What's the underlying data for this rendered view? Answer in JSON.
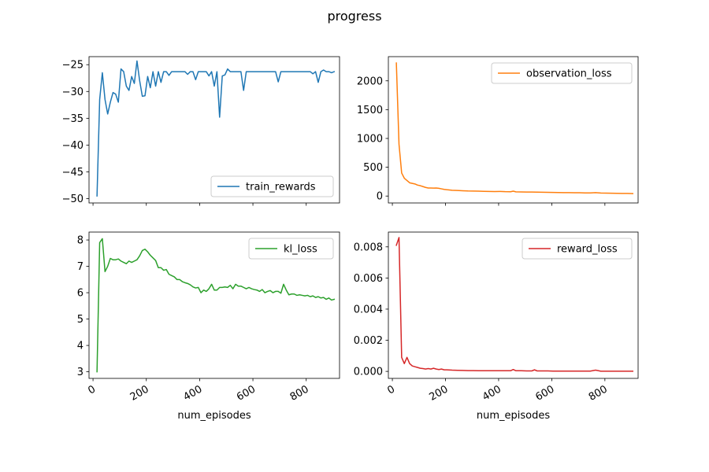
{
  "figure": {
    "title": "progress"
  },
  "chart_data": [
    {
      "type": "line",
      "series": [
        {
          "name": "train_rewards",
          "color": "#1f77b4",
          "x": [
            15,
            25,
            35,
            45,
            55,
            65,
            75,
            85,
            95,
            105,
            115,
            125,
            135,
            145,
            155,
            165,
            175,
            185,
            195,
            205,
            215,
            225,
            235,
            245,
            255,
            265,
            275,
            285,
            295,
            305,
            315,
            325,
            335,
            345,
            355,
            365,
            375,
            385,
            395,
            405,
            415,
            425,
            435,
            445,
            455,
            465,
            475,
            485,
            495,
            505,
            515,
            525,
            535,
            545,
            555,
            565,
            575,
            585,
            595,
            605,
            615,
            625,
            635,
            645,
            655,
            665,
            675,
            685,
            695,
            705,
            715,
            725,
            735,
            745,
            755,
            765,
            775,
            785,
            795,
            805,
            815,
            825,
            835,
            845,
            855,
            865,
            875,
            885,
            895,
            905
          ],
          "values": [
            -49.5,
            -31.5,
            -26.5,
            -31.5,
            -34.2,
            -32.0,
            -30.2,
            -30.5,
            -32.0,
            -25.8,
            -26.3,
            -29.0,
            -29.8,
            -27.2,
            -28.5,
            -24.3,
            -28.0,
            -30.9,
            -30.8,
            -27.2,
            -29.3,
            -26.3,
            -29.0,
            -26.3,
            -28.3,
            -26.3,
            -26.3,
            -27.0,
            -26.3,
            -26.3,
            -26.3,
            -26.3,
            -26.3,
            -26.3,
            -26.8,
            -26.3,
            -26.3,
            -27.8,
            -26.3,
            -26.3,
            -26.3,
            -26.3,
            -27.1,
            -26.3,
            -29.0,
            -26.3,
            -34.8,
            -27.1,
            -26.9,
            -25.8,
            -26.3,
            -26.3,
            -26.3,
            -26.3,
            -26.3,
            -29.8,
            -26.3,
            -26.3,
            -26.3,
            -26.3,
            -26.3,
            -26.3,
            -26.3,
            -26.3,
            -26.3,
            -26.3,
            -26.3,
            -26.3,
            -28.2,
            -26.3,
            -26.3,
            -26.3,
            -26.3,
            -26.3,
            -26.3,
            -26.3,
            -26.3,
            -26.3,
            -26.3,
            -26.3,
            -26.3,
            -26.7,
            -26.3,
            -28.3,
            -26.3,
            -26.0,
            -26.3,
            -26.3,
            -26.5,
            -26.3
          ]
        }
      ],
      "xlim": [
        -15,
        925
      ],
      "ylim": [
        -50.8,
        -23.5
      ],
      "xticks": [
        0,
        200,
        400,
        600,
        800
      ],
      "xtick_labels": [
        "",
        "",
        "",
        "",
        ""
      ],
      "yticks": [
        -50,
        -45,
        -40,
        -35,
        -30,
        -25
      ],
      "ytick_labels": [
        "−50",
        "−45",
        "−40",
        "−35",
        "−30",
        "−25"
      ],
      "legend": "lower right",
      "xlabel": ""
    },
    {
      "type": "line",
      "series": [
        {
          "name": "observation_loss",
          "color": "#ff7f0e",
          "x": [
            15,
            25,
            35,
            45,
            55,
            65,
            75,
            85,
            95,
            105,
            115,
            125,
            135,
            145,
            155,
            165,
            175,
            185,
            195,
            205,
            215,
            225,
            245,
            265,
            285,
            305,
            325,
            345,
            365,
            385,
            405,
            425,
            445,
            455,
            465,
            485,
            505,
            525,
            545,
            565,
            585,
            605,
            625,
            645,
            665,
            685,
            705,
            725,
            745,
            765,
            785,
            805,
            825,
            845,
            865,
            885,
            905
          ],
          "values": [
            2310,
            900,
            400,
            310,
            270,
            230,
            220,
            210,
            190,
            180,
            165,
            150,
            140,
            140,
            138,
            140,
            135,
            125,
            115,
            110,
            106,
            100,
            96,
            92,
            88,
            86,
            84,
            82,
            80,
            78,
            80,
            76,
            74,
            85,
            73,
            72,
            70,
            70,
            68,
            66,
            64,
            62,
            61,
            60,
            59,
            58,
            57,
            55,
            54,
            60,
            52,
            50,
            49,
            48,
            46,
            45,
            42
          ]
        }
      ],
      "xlim": [
        -15,
        925
      ],
      "ylim": [
        -120,
        2420
      ],
      "xticks": [
        0,
        200,
        400,
        600,
        800
      ],
      "xtick_labels": [
        "",
        "",
        "",
        "",
        ""
      ],
      "yticks": [
        0,
        500,
        1000,
        1500,
        2000
      ],
      "ytick_labels": [
        "0",
        "500",
        "1000",
        "1500",
        "2000"
      ],
      "legend": "upper right",
      "xlabel": ""
    },
    {
      "type": "line",
      "series": [
        {
          "name": "kl_loss",
          "color": "#2ca02c",
          "x": [
            15,
            25,
            35,
            45,
            55,
            65,
            75,
            85,
            95,
            105,
            115,
            125,
            135,
            145,
            155,
            165,
            175,
            185,
            195,
            205,
            215,
            225,
            235,
            245,
            255,
            265,
            275,
            285,
            295,
            305,
            315,
            325,
            335,
            345,
            355,
            365,
            375,
            385,
            395,
            405,
            415,
            425,
            435,
            445,
            455,
            465,
            475,
            485,
            495,
            505,
            515,
            525,
            535,
            545,
            555,
            565,
            575,
            585,
            595,
            605,
            615,
            625,
            635,
            645,
            655,
            665,
            675,
            685,
            695,
            705,
            715,
            725,
            735,
            745,
            755,
            765,
            775,
            785,
            795,
            805,
            815,
            825,
            835,
            845,
            855,
            865,
            875,
            885,
            895,
            905
          ],
          "values": [
            3.0,
            7.9,
            8.05,
            6.8,
            7.0,
            7.3,
            7.25,
            7.25,
            7.28,
            7.2,
            7.15,
            7.1,
            7.2,
            7.15,
            7.2,
            7.25,
            7.4,
            7.6,
            7.65,
            7.55,
            7.42,
            7.32,
            7.22,
            6.95,
            6.95,
            6.85,
            6.88,
            6.7,
            6.65,
            6.6,
            6.5,
            6.5,
            6.42,
            6.38,
            6.35,
            6.3,
            6.22,
            6.18,
            6.2,
            6.0,
            6.1,
            6.05,
            6.15,
            6.32,
            6.1,
            6.1,
            6.2,
            6.2,
            6.22,
            6.2,
            6.28,
            6.15,
            6.32,
            6.25,
            6.25,
            6.2,
            6.15,
            6.2,
            6.15,
            6.12,
            6.1,
            6.05,
            6.12,
            6.0,
            6.05,
            6.08,
            6.0,
            6.05,
            6.05,
            5.98,
            6.32,
            6.1,
            5.92,
            5.95,
            5.95,
            5.9,
            5.92,
            5.9,
            5.88,
            5.9,
            5.85,
            5.88,
            5.82,
            5.85,
            5.8,
            5.82,
            5.75,
            5.8,
            5.72,
            5.75
          ]
        }
      ],
      "xlim": [
        -15,
        925
      ],
      "ylim": [
        2.75,
        8.3
      ],
      "xticks": [
        0,
        200,
        400,
        600,
        800
      ],
      "xtick_labels": [
        "0",
        "200",
        "400",
        "600",
        "800"
      ],
      "yticks": [
        3,
        4,
        5,
        6,
        7,
        8
      ],
      "ytick_labels": [
        "3",
        "4",
        "5",
        "6",
        "7",
        "8"
      ],
      "legend": "upper right",
      "xlabel": "num_episodes"
    },
    {
      "type": "line",
      "series": [
        {
          "name": "reward_loss",
          "color": "#d62728",
          "x": [
            15,
            25,
            35,
            45,
            55,
            65,
            75,
            85,
            95,
            105,
            115,
            125,
            135,
            145,
            155,
            165,
            175,
            185,
            195,
            205,
            225,
            245,
            265,
            285,
            305,
            325,
            345,
            365,
            385,
            405,
            425,
            445,
            455,
            465,
            485,
            505,
            525,
            535,
            545,
            565,
            585,
            605,
            625,
            645,
            665,
            685,
            705,
            725,
            745,
            765,
            785,
            805,
            825,
            845,
            865,
            885,
            905
          ],
          "values": [
            0.0081,
            0.0086,
            0.0009,
            0.0005,
            0.0009,
            0.0005,
            0.00035,
            0.0003,
            0.00025,
            0.0002,
            0.00018,
            0.00015,
            0.00018,
            0.00015,
            0.0002,
            0.00015,
            0.00012,
            0.00015,
            0.0001,
            0.0001,
            8e-05,
            7e-05,
            6e-05,
            5e-05,
            5e-05,
            4e-05,
            4e-05,
            4e-05,
            4e-05,
            4e-05,
            4e-05,
            4e-05,
            0.00012,
            4e-05,
            4e-05,
            3e-05,
            3e-05,
            0.0001,
            3e-05,
            3e-05,
            3e-05,
            2e-05,
            2e-05,
            2e-05,
            2e-05,
            2e-05,
            2e-05,
            2e-05,
            2e-05,
            8e-05,
            1e-05,
            1e-05,
            1e-05,
            1e-05,
            1e-05,
            1e-05,
            1e-05
          ]
        }
      ],
      "xlim": [
        -15,
        925
      ],
      "ylim": [
        -0.00045,
        0.00895
      ],
      "xticks": [
        0,
        200,
        400,
        600,
        800
      ],
      "xtick_labels": [
        "0",
        "200",
        "400",
        "600",
        "800"
      ],
      "yticks": [
        0,
        0.002,
        0.004,
        0.006,
        0.008
      ],
      "ytick_labels": [
        "0.000",
        "0.002",
        "0.004",
        "0.006",
        "0.008"
      ],
      "legend": "upper right",
      "xlabel": "num_episodes"
    }
  ]
}
